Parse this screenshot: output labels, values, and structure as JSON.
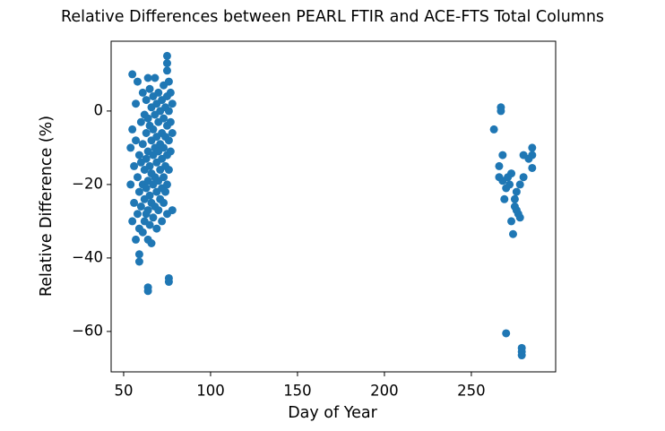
{
  "chart_data": {
    "type": "scatter",
    "title": "Relative Differences between PEARL FTIR and ACE-FTS Total Columns",
    "x_label": "Day of Year",
    "y_label": "Relative Difference (%)",
    "xlim": [
      42.8,
      298.5
    ],
    "ylim": [
      -71.0,
      19.0
    ],
    "xticks": [
      50,
      100,
      150,
      200,
      250
    ],
    "yticks": [
      {
        "value": -60,
        "label": "−60"
      },
      {
        "value": -40,
        "label": "−40"
      },
      {
        "value": -20,
        "label": "−20"
      },
      0
    ],
    "grid": false,
    "series": [
      {
        "color": "#1f77b4",
        "x": [
          55,
          75,
          75,
          75,
          64,
          64,
          76,
          76,
          59,
          59,
          54,
          54,
          55,
          55,
          56,
          56,
          57,
          57,
          57,
          58,
          58,
          58,
          59,
          59,
          59,
          60,
          60,
          60,
          61,
          61,
          61,
          61,
          62,
          62,
          62,
          62,
          63,
          63,
          63,
          63,
          63,
          64,
          64,
          64,
          64,
          64,
          64,
          65,
          65,
          65,
          65,
          65,
          66,
          66,
          66,
          66,
          66,
          67,
          67,
          67,
          67,
          67,
          68,
          68,
          68,
          68,
          68,
          69,
          69,
          69,
          69,
          69,
          70,
          70,
          70,
          70,
          70,
          71,
          71,
          71,
          71,
          72,
          72,
          72,
          72,
          72,
          73,
          73,
          73,
          73,
          73,
          74,
          74,
          74,
          74,
          75,
          75,
          75,
          75,
          75,
          76,
          76,
          76,
          76,
          77,
          77,
          77,
          78,
          78,
          78,
          263,
          267,
          267,
          268,
          266,
          270,
          279,
          279,
          279,
          285,
          285,
          285,
          274,
          273,
          272,
          276,
          275,
          277,
          278,
          280,
          268,
          270,
          275,
          271,
          278,
          280,
          273,
          276,
          269,
          266,
          283
        ],
        "values": [
          10,
          15,
          13,
          11,
          -48,
          -49,
          -45.5,
          -46.5,
          -41,
          -39,
          -10,
          -20,
          -30,
          -5,
          -15,
          -25,
          -35,
          2,
          -8,
          -18,
          -28,
          8,
          -12,
          -22,
          -32,
          -3,
          -14,
          -26,
          5,
          -9,
          -20,
          -33,
          -1,
          -16,
          -24,
          -30,
          3,
          -6,
          -13,
          -21,
          -28,
          9,
          -2,
          -11,
          -19,
          -27,
          -35,
          6,
          -4,
          -15,
          -23,
          -31,
          1,
          -8,
          -17,
          -25,
          -36,
          4,
          -5,
          -12,
          -20,
          -29,
          9,
          -1,
          -10,
          -18,
          -26,
          2,
          -7,
          -14,
          -22,
          -32,
          5,
          -3,
          -11,
          -19,
          -27,
          0,
          -9,
          -16,
          -24,
          3,
          -6,
          -13,
          -21,
          -30,
          7,
          -2,
          -10,
          -18,
          -25,
          1,
          -7,
          -15,
          -22,
          4,
          -4,
          -12,
          -20,
          -28,
          8,
          0,
          -8,
          -16,
          5,
          -3,
          -11,
          2,
          -6,
          -27,
          -5,
          1,
          0,
          -12,
          -15,
          -60.5,
          -64.5,
          -65.5,
          -66.5,
          -10,
          -12,
          -15.5,
          -33.5,
          -17,
          -20,
          -22,
          -26,
          -28,
          -29,
          -12,
          -19,
          -21,
          -24,
          -18,
          -20,
          -18,
          -30,
          -27,
          -24,
          -18,
          -13
        ]
      }
    ]
  }
}
